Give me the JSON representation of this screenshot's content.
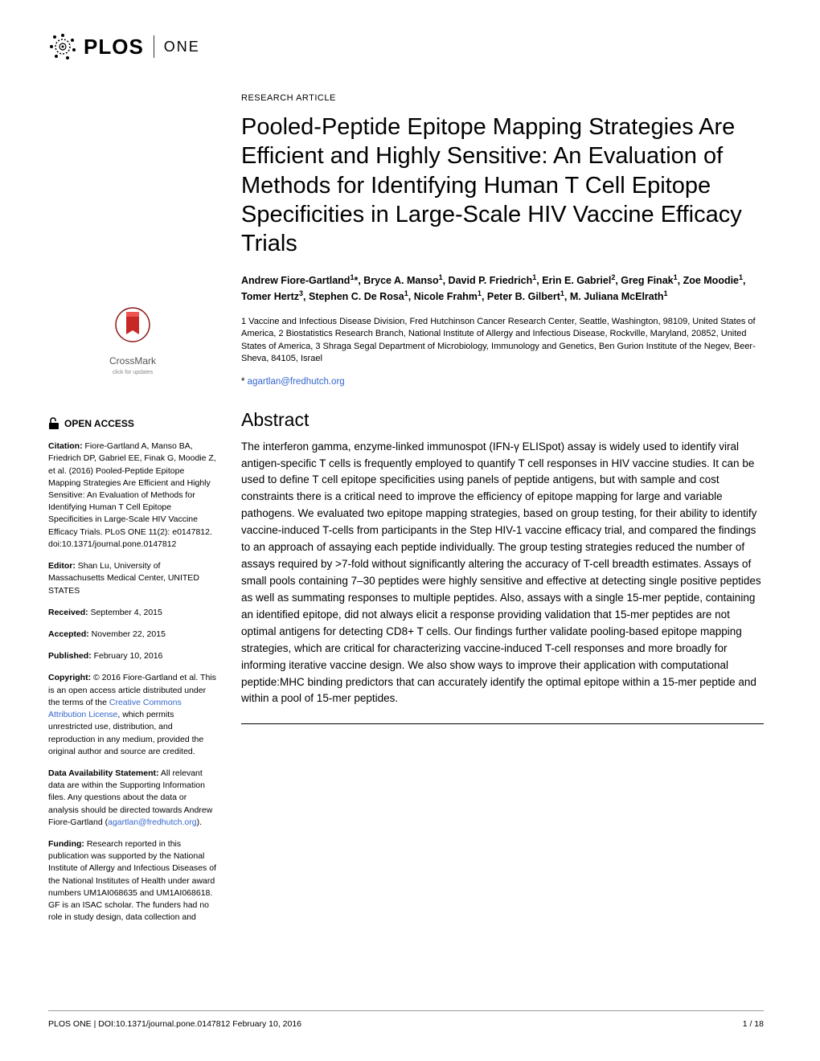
{
  "journal": {
    "publisher": "PLOS",
    "name": "ONE"
  },
  "article": {
    "type": "RESEARCH ARTICLE",
    "title": "Pooled-Peptide Epitope Mapping Strategies Are Efficient and Highly Sensitive: An Evaluation of Methods for Identifying Human T Cell Epitope Specificities in Large-Scale HIV Vaccine Efficacy Trials",
    "authors_html": "Andrew Fiore-Gartland<sup>1</sup>*, Bryce A. Manso<sup>1</sup>, David P. Friedrich<sup>1</sup>, Erin E. Gabriel<sup>2</sup>, Greg Finak<sup>1</sup>, Zoe Moodie<sup>1</sup>, Tomer Hertz<sup>3</sup>, Stephen C. De Rosa<sup>1</sup>, Nicole Frahm<sup>1</sup>, Peter B. Gilbert<sup>1</sup>, M. Juliana McElrath<sup>1</sup>",
    "affiliations": "1 Vaccine and Infectious Disease Division, Fred Hutchinson Cancer Research Center, Seattle, Washington, 98109, United States of America, 2 Biostatistics Research Branch, National Institute of Allergy and Infectious Disease, Rockville, Maryland, 20852, United States of America, 3 Shraga Segal Department of Microbiology, Immunology and Genetics, Ben Gurion Institute of the Negev, Beer-Sheva, 84105, Israel",
    "corresponding_prefix": "* ",
    "corresponding_email": "agartlan@fredhutch.org"
  },
  "abstract": {
    "heading": "Abstract",
    "body": "The interferon gamma, enzyme-linked immunospot (IFN-γ ELISpot) assay is widely used to identify viral antigen-specific T cells is frequently employed to quantify T cell responses in HIV vaccine studies. It can be used to define T cell epitope specificities using panels of peptide antigens, but with sample and cost constraints there is a critical need to improve the efficiency of epitope mapping for large and variable pathogens. We evaluated two epitope mapping strategies, based on group testing, for their ability to identify vaccine-induced T-cells from participants in the Step HIV-1 vaccine efficacy trial, and compared the findings to an approach of assaying each peptide individually. The group testing strategies reduced the number of assays required by >7-fold without significantly altering the accuracy of T-cell breadth estimates. Assays of small pools containing 7–30 peptides were highly sensitive and effective at detecting single positive peptides as well as summating responses to multiple peptides. Also, assays with a single 15-mer peptide, containing an identified epitope, did not always elicit a response providing validation that 15-mer peptides are not optimal antigens for detecting CD8+ T cells. Our findings further validate pooling-based epitope mapping strategies, which are critical for characterizing vaccine-induced T-cell responses and more broadly for informing iterative vaccine design. We also show ways to improve their application with computational peptide:MHC binding predictors that can accurately identify the optimal epitope within a 15-mer peptide and within a pool of 15-mer peptides."
  },
  "sidebar": {
    "crossmark": {
      "label": "CrossMark",
      "sub": "click for updates"
    },
    "openaccess": "OPEN ACCESS",
    "citation_label": "Citation:",
    "citation": " Fiore-Gartland A, Manso BA, Friedrich DP, Gabriel EE, Finak G, Moodie Z, et al. (2016) Pooled-Peptide Epitope Mapping Strategies Are Efficient and Highly Sensitive: An Evaluation of Methods for Identifying Human T Cell Epitope Specificities in Large-Scale HIV Vaccine Efficacy Trials. PLoS ONE 11(2): e0147812. doi:10.1371/journal.pone.0147812",
    "editor_label": "Editor:",
    "editor": " Shan Lu, University of Massachusetts Medical Center, UNITED STATES",
    "received_label": "Received:",
    "received": " September 4, 2015",
    "accepted_label": "Accepted:",
    "accepted": " November 22, 2015",
    "published_label": "Published:",
    "published": " February 10, 2016",
    "copyright_label": "Copyright:",
    "copyright_before_link": " © 2016 Fiore-Gartland et al. This is an open access article distributed under the terms of the ",
    "copyright_link": "Creative Commons Attribution License",
    "copyright_after_link": ", which permits unrestricted use, distribution, and reproduction in any medium, provided the original author and source are credited.",
    "data_label": "Data Availability Statement:",
    "data_before_link": " All relevant data are within the Supporting Information files. Any questions about the data or analysis should be directed towards Andrew Fiore-Gartland (",
    "data_link": "agartlan@fredhutch.org",
    "data_after_link": ").",
    "funding_label": "Funding:",
    "funding": " Research reported in this publication was supported by the National Institute of Allergy and Infectious Diseases of the National Institutes of Health under award numbers UM1AI068635 and UM1AI068618. GF is an ISAC scholar. The funders had no role in study design, data collection and"
  },
  "footer": {
    "left": "PLOS ONE | DOI:10.1371/journal.pone.0147812   February 10, 2016",
    "right": "1 / 18"
  }
}
